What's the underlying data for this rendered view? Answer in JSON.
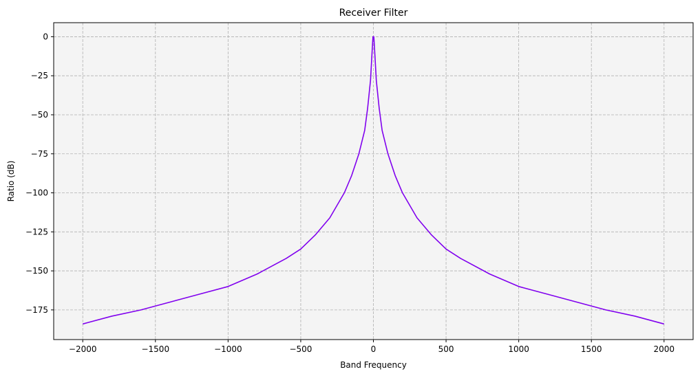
{
  "chart_data": {
    "type": "line",
    "title": "Receiver Filter",
    "xlabel": "Band Frequency",
    "ylabel": "Ratio (dB)",
    "xlim": [
      -2200,
      2200
    ],
    "ylim": [
      -194,
      9
    ],
    "x_ticks": [
      -2000,
      -1500,
      -1000,
      -500,
      0,
      500,
      1000,
      1500,
      2000
    ],
    "x_tick_labels": [
      "−2000",
      "−1500",
      "−1000",
      "−500",
      "0",
      "500",
      "1000",
      "1500",
      "2000"
    ],
    "y_ticks": [
      0,
      -25,
      -50,
      -75,
      -100,
      -125,
      -150,
      -175
    ],
    "y_tick_labels": [
      "0",
      "−25",
      "−50",
      "−75",
      "−100",
      "−125",
      "−150",
      "−175"
    ],
    "grid": true,
    "background": "#f4f4f4",
    "series": [
      {
        "color": "#8000ee",
        "x": [
          -2000,
          -1800,
          -1600,
          -1400,
          -1200,
          -1000,
          -800,
          -600,
          -500,
          -400,
          -300,
          -200,
          -150,
          -100,
          -60,
          -40,
          -20,
          -8,
          -3,
          0,
          3,
          8,
          20,
          40,
          60,
          100,
          150,
          200,
          300,
          400,
          500,
          600,
          800,
          1000,
          1200,
          1400,
          1600,
          1800,
          2000
        ],
        "y": [
          -184,
          -179,
          -175,
          -170,
          -165,
          -160,
          -152,
          -142,
          -136,
          -127,
          -116,
          -100,
          -89,
          -75,
          -60,
          -46,
          -28,
          -8,
          0,
          0,
          0,
          -8,
          -28,
          -46,
          -60,
          -75,
          -89,
          -100,
          -116,
          -127,
          -136,
          -142,
          -152,
          -160,
          -165,
          -170,
          -175,
          -179,
          -184
        ]
      }
    ]
  }
}
